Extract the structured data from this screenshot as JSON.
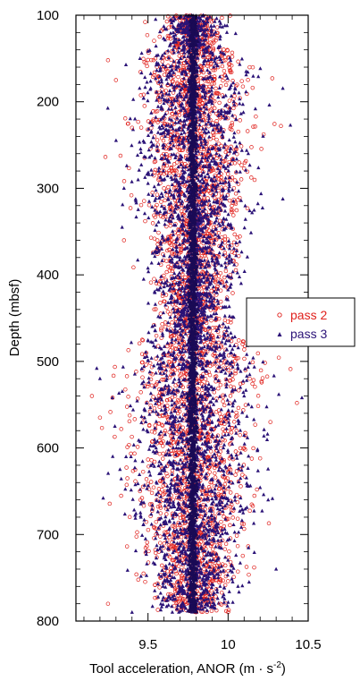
{
  "chart_data": {
    "type": "scatter",
    "xlabel": "Tool acceleration, ANOR (m · s",
    "xlabel_sup": "-2",
    "xlabel_close": ")",
    "ylabel": "Depth (mbsf)",
    "xlim": [
      9.05,
      10.5
    ],
    "ylim": [
      800,
      100
    ],
    "y_inverted": true,
    "xticks": [
      9.5,
      10,
      10.5
    ],
    "xtick_labels": [
      "9.5",
      "10",
      "10.5"
    ],
    "yticks": [
      100,
      200,
      300,
      400,
      500,
      600,
      700,
      800
    ],
    "ytick_labels": [
      "100",
      "200",
      "300",
      "400",
      "500",
      "600",
      "700",
      "800"
    ],
    "legend_position": "right",
    "series": [
      {
        "name": "pass 2",
        "marker": "circle",
        "color": "#e0201c",
        "depth_range": [
          100,
          790
        ],
        "center_line": 9.78,
        "x": [
          9.25,
          9.3,
          9.15,
          9.2,
          9.4,
          9.6,
          9.7,
          9.9,
          10.0,
          10.1,
          10.43,
          10.33,
          9.45,
          9.55,
          9.85,
          9.95,
          9.35,
          10.2,
          9.25,
          9.65
        ],
        "y": [
          152,
          175,
          540,
          565,
          230,
          300,
          420,
          470,
          510,
          600,
          548,
          228,
          650,
          700,
          740,
          780,
          360,
          612,
          780,
          455
        ]
      },
      {
        "name": "pass 3",
        "marker": "triangle",
        "color": "#2a1277",
        "depth_range": [
          100,
          790
        ],
        "center_line": 9.78,
        "x": [
          9.18,
          9.22,
          9.2,
          9.45,
          9.6,
          9.7,
          9.9,
          10.0,
          10.1,
          10.25,
          10.3,
          9.35,
          9.55,
          9.85,
          9.95,
          9.28,
          10.05,
          9.4
        ],
        "y": [
          508,
          658,
          520,
          150,
          250,
          380,
          430,
          470,
          540,
          660,
          740,
          300,
          600,
          700,
          760,
          610,
          220,
          790
        ]
      }
    ]
  },
  "legend": {
    "pass2_label": "pass 2",
    "pass3_label": "pass 3"
  },
  "colors": {
    "pass2": "#e0201c",
    "pass3": "#2a1277",
    "center": "#1a0a55"
  }
}
